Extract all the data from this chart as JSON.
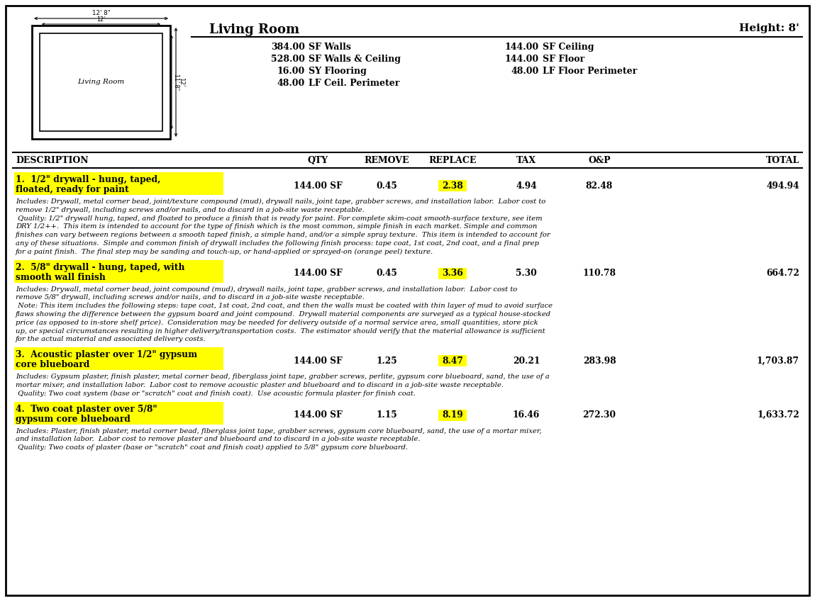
{
  "title": "Living Room",
  "height_label": "Height: 8'",
  "room_label": "Living Room",
  "room_dims_top": "12' 8\"",
  "room_dims_inner_top": "12'",
  "room_dims_side_outer": "12'",
  "room_dims_side_inner": "11' 8\"",
  "measurements_left": [
    [
      "384.00",
      "SF Walls"
    ],
    [
      "528.00",
      "SF Walls & Ceiling"
    ],
    [
      "16.00",
      "SY Flooring"
    ],
    [
      "48.00",
      "LF Ceil. Perimeter"
    ]
  ],
  "measurements_right": [
    [
      "144.00",
      "SF Ceiling"
    ],
    [
      "144.00",
      "SF Floor"
    ],
    [
      "48.00",
      "LF Floor Perimeter"
    ]
  ],
  "col_headers": [
    "DESCRIPTION",
    "QTY",
    "REMOVE",
    "REPLACE",
    "TAX",
    "O&P",
    "TOTAL"
  ],
  "items": [
    {
      "number": "1.",
      "name_line1": "1/2\" drywall - hung, taped,",
      "name_line2": "floated, ready for paint",
      "qty": "144.00 SF",
      "remove": "0.45",
      "replace": "2.38",
      "tax": "4.94",
      "op": "82.48",
      "total": "494.94",
      "desc_lines": [
        "Includes: Drywall, metal corner bead, joint/texture compound (mud), drywall nails, joint tape, grabber screws, and installation labor.  Labor cost to",
        "remove 1/2\" drywall, including screws and/or nails, and to discard in a job-site waste receptable.",
        " Quality: 1/2\" drywall hung, taped, and floated to produce a finish that is ready for paint. For complete skim-coat smooth-surface texture, see item",
        "DRY 1/2++.  This item is intended to account for the type of finish which is the most common, simple finish in each market. Simple and common",
        "finishes can vary between regions between a smooth taped finish, a simple hand, and/or a simple spray texture.  This item is intended to account for",
        "any of these situations.  Simple and common finish of drywall includes the following finish process: tape coat, 1st coat, 2nd coat, and a final prep",
        "for a paint finish.  The final step may be sanding and touch-up, or hand-applied or sprayed-on (orange peel) texture."
      ]
    },
    {
      "number": "2.",
      "name_line1": "5/8\" drywall - hung, taped, with",
      "name_line2": "smooth wall finish",
      "qty": "144.00 SF",
      "remove": "0.45",
      "replace": "3.36",
      "tax": "5.30",
      "op": "110.78",
      "total": "664.72",
      "desc_lines": [
        "Includes: Drywall, metal corner bead, joint compound (mud), drywall nails, joint tape, grabber screws, and installation labor.  Labor cost to",
        "remove 5/8\" drywall, including screws and/or nails, and to discard in a job-site waste receptable.",
        " Note: This item includes the following steps: tape coat, 1st coat, 2nd coat, and then the walls must be coated with thin layer of mud to avoid surface",
        "flaws showing the difference between the gypsum board and joint compound.  Drywall material components are surveyed as a typical house-stocked",
        "price (as opposed to in-store shelf price).  Consideration may be needed for delivery outside of a normal service area, small quantities, store pick",
        "up, or special circumstances resulting in higher delivery/transportation costs.  The estimator should verify that the material allowance is sufficient",
        "for the actual material and associated delivery costs."
      ]
    },
    {
      "number": "3.",
      "name_line1": "Acoustic plaster over 1/2\" gypsum",
      "name_line2": "core blueboard",
      "qty": "144.00 SF",
      "remove": "1.25",
      "replace": "8.47",
      "tax": "20.21",
      "op": "283.98",
      "total": "1,703.87",
      "desc_lines": [
        "Includes: Gypsum plaster, finish plaster, metal corner bead, fiberglass joint tape, grabber screws, perlite, gypsum core blueboard, sand, the use of a",
        "mortar mixer, and installation labor.  Labor cost to remove acoustic plaster and blueboard and to discard in a job-site waste receptable.",
        " Quality: Two coat system (base or \"scratch\" coat and finish coat).  Use acoustic formula plaster for finish coat."
      ]
    },
    {
      "number": "4.",
      "name_line1": "Two coat plaster over 5/8\"",
      "name_line2": "gypsum core blueboard",
      "qty": "144.00 SF",
      "remove": "1.15",
      "replace": "8.19",
      "tax": "16.46",
      "op": "272.30",
      "total": "1,633.72",
      "desc_lines": [
        "Includes: Plaster, finish plaster, metal corner bead, fiberglass joint tape, grabber screws, gypsum core blueboard, sand, the use of a mortar mixer,",
        "and installation labor.  Labor cost to remove plaster and blueboard and to discard in a job-site waste receptable.",
        " Quality: Two coats of plaster (base or \"scratch\" coat and finish coat) applied to 5/8\" gypsum core blueboard."
      ]
    }
  ],
  "highlight_color": "#ffff00",
  "border_color": "#000000",
  "bg_color": "#ffffff"
}
